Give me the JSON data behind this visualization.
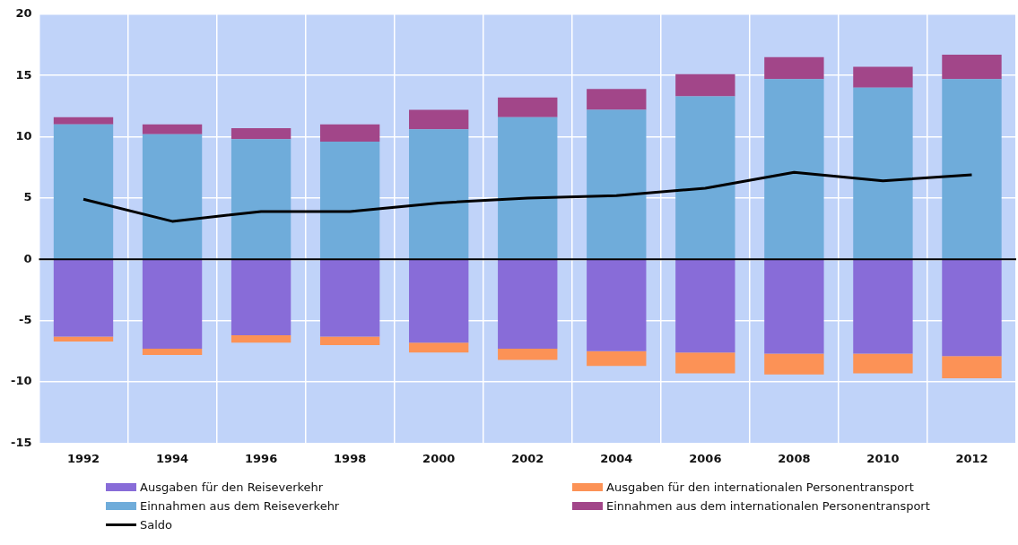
{
  "chart_data": {
    "type": "bar",
    "stacked": true,
    "categories": [
      "1992",
      "1994",
      "1996",
      "1998",
      "2000",
      "2002",
      "2004",
      "2006",
      "2008",
      "2010",
      "2012"
    ],
    "series": [
      {
        "name": "Ausgaben für den Reiseverkehr",
        "color": "#886cd8",
        "values": [
          -6.3,
          -7.3,
          -6.2,
          -6.3,
          -6.8,
          -7.3,
          -7.5,
          -7.6,
          -7.7,
          -7.7,
          -7.9
        ]
      },
      {
        "name": "Ausgaben für den internationalen Personentransport",
        "color": "#fc9256",
        "values": [
          -0.4,
          -0.5,
          -0.6,
          -0.7,
          -0.8,
          -0.9,
          -1.2,
          -1.7,
          -1.7,
          -1.6,
          -1.8
        ]
      },
      {
        "name": "Einnahmen aus dem Reiseverkehr",
        "color": "#6facda",
        "values": [
          11.0,
          10.2,
          9.8,
          9.6,
          10.6,
          11.6,
          12.2,
          13.3,
          14.7,
          14.0,
          14.7
        ]
      },
      {
        "name": "Einnahmen aus dem internationalen Personentransport",
        "color": "#a24689",
        "values": [
          0.6,
          0.8,
          0.9,
          1.4,
          1.6,
          1.6,
          1.7,
          1.8,
          1.8,
          1.7,
          2.0
        ]
      },
      {
        "name": "Saldo",
        "type": "line",
        "color": "#000000",
        "marker": "none",
        "values": [
          4.9,
          3.1,
          3.9,
          3.9,
          4.6,
          5.0,
          5.2,
          5.8,
          7.1,
          6.4,
          6.9
        ]
      }
    ],
    "ylim": [
      -15,
      20
    ],
    "yticks": [
      -15,
      -10,
      -5,
      0,
      5,
      10,
      15,
      20
    ],
    "ref_lines": [
      {
        "axis": "y",
        "value": 0,
        "color": "#000000"
      }
    ],
    "grid": true,
    "legend": "bottom"
  }
}
